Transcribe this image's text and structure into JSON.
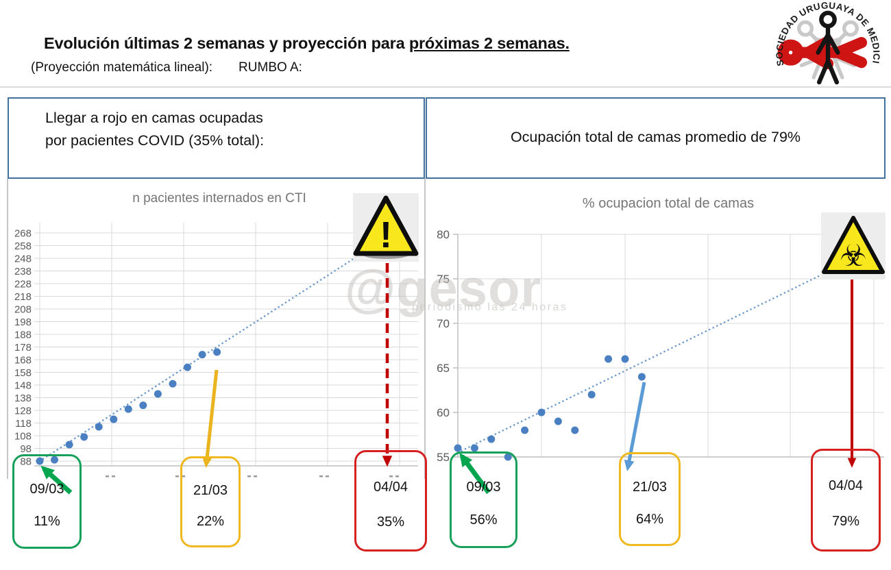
{
  "page": {
    "title_main": "Evolución últimas 2 semanas y proyección para ",
    "title_underlined": "próximas 2 semanas.",
    "subtitle_left": "(Proyección matemática lineal):",
    "subtitle_right": "RUMBO A:"
  },
  "logo": {
    "ring_text": "SOCIEDAD URUGUAYA DE MEDICINA INTENSIVA"
  },
  "headers": {
    "left_lines": [
      "Llegar a rojo en camas ocupadas",
      "por pacientes COVID (35% total):"
    ],
    "right": "Ocupación total de camas promedio de 79%"
  },
  "watermark": {
    "text": "@gesor",
    "subtext": "periodismo las 24 horas"
  },
  "chart_data": [
    {
      "type": "scatter",
      "title": "n pacientes internados en CTI",
      "xlabel": "",
      "ylabel": "",
      "ylim": [
        88,
        268
      ],
      "ytick_step": 10,
      "yticks": [
        268,
        258,
        248,
        238,
        228,
        218,
        208,
        198,
        188,
        178,
        168,
        158,
        148,
        138,
        128,
        118,
        108,
        98,
        88
      ],
      "x_days": [
        0,
        1,
        2,
        3,
        4,
        5,
        6,
        7,
        8,
        9,
        10,
        11,
        12
      ],
      "values": [
        88,
        89,
        101,
        107,
        115,
        121,
        129,
        132,
        141,
        149,
        162,
        172,
        174
      ],
      "trendline": {
        "style": "dotted",
        "x_days": [
          0,
          21.3
        ],
        "values": [
          88,
          248
        ]
      },
      "grid": true,
      "legend": "none",
      "point_color": "#4a7fc1"
    },
    {
      "type": "scatter",
      "title": "% ocupacion total de camas",
      "xlabel": "",
      "ylabel": "",
      "ylim": [
        55,
        80
      ],
      "ytick_step": 5,
      "yticks": [
        80,
        75,
        70,
        65,
        60,
        55
      ],
      "x_days": [
        0,
        1,
        2,
        3,
        4,
        5,
        6,
        7,
        8,
        9,
        10,
        11
      ],
      "values": [
        56,
        56,
        57,
        55,
        58,
        60,
        59,
        58,
        62,
        66,
        66,
        64
      ],
      "trendline": {
        "style": "dotted",
        "x_days": [
          0,
          21.8
        ],
        "values": [
          55.5,
          75.5
        ]
      },
      "grid": true,
      "legend": "none",
      "point_color": "#4a7fc1"
    }
  ],
  "milestones": {
    "left": [
      {
        "date": "09/03",
        "value": "11%",
        "color": "#17a05a"
      },
      {
        "date": "21/03",
        "value": "22%",
        "color": "#f0b81f"
      },
      {
        "date": "04/04",
        "value": "35%",
        "color": "#d62020"
      }
    ],
    "right": [
      {
        "date": "09/03",
        "value": "56%",
        "color": "#17a05a"
      },
      {
        "date": "21/03",
        "value": "64%",
        "color": "#f0b81f"
      },
      {
        "date": "04/04",
        "value": "79%",
        "color": "#d62020"
      }
    ]
  },
  "icons": {
    "left_chart_warning": "exclamation-triangle",
    "right_chart_warning": "biohazard-triangle"
  },
  "colors": {
    "accent_green": "#17a05a",
    "accent_yellow": "#f0b81f",
    "accent_red": "#d62020",
    "arrow_red": "#c00000",
    "arrow_blue": "#5b9bd5",
    "arrow_green": "#00a550",
    "point_blue": "#4a7fc1",
    "trendline_blue": "#6e9bcd",
    "grid_gray": "#d9d9d9",
    "header_border_blue": "#41719c"
  }
}
